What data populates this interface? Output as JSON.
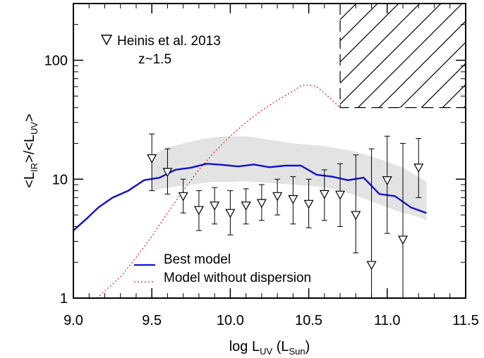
{
  "chart_data": {
    "type": "line",
    "xlabel": {
      "main": "log L",
      "sub1": "UV",
      "mid": " (L",
      "sub2": "Sun",
      "end": ")"
    },
    "ylabel": {
      "p1": "<L",
      "s1": "IR",
      "p2": ">/<L",
      "s2": "UV",
      "p3": ">"
    },
    "xlim": [
      9.0,
      11.5
    ],
    "ylim": [
      1,
      300
    ],
    "yscale": "log",
    "xticks": [
      "9.0",
      "9.5",
      "10.0",
      "10.5",
      "11.0",
      "11.5"
    ],
    "yticks": [
      {
        "value": 1,
        "label": "1"
      },
      {
        "value": 10,
        "label": "10"
      },
      {
        "value": 100,
        "label": "100"
      }
    ],
    "legend_top": {
      "symbol": "triangle-down",
      "line1": "Heinis et al. 2013",
      "line2": "z~1.5"
    },
    "legend_bottom": [
      {
        "label": "Best model",
        "color": "#1010d0",
        "style": "solid"
      },
      {
        "label": "Model without dispersion",
        "color": "#e02020",
        "style": "dotted"
      }
    ],
    "band": {
      "x": [
        9.5,
        9.6,
        9.7,
        9.8,
        9.9,
        10.0,
        10.1,
        10.2,
        10.3,
        10.4,
        10.5,
        10.6,
        10.7,
        10.8,
        10.9,
        11.0,
        11.1,
        11.2,
        11.25
      ],
      "upper": [
        16,
        18.5,
        20,
        21.5,
        22.5,
        23,
        23,
        22,
        21,
        20,
        19.5,
        19,
        18,
        17,
        15.5,
        14,
        12.5,
        10.5,
        9.5
      ],
      "lower": [
        8,
        8.5,
        8.8,
        9.2,
        9.5,
        9.5,
        9.6,
        9.4,
        9.2,
        9.0,
        8.8,
        8.5,
        8.0,
        7.3,
        6.5,
        5.8,
        5.2,
        4.8,
        4.5
      ],
      "color": "#e3e3e3"
    },
    "best_model": {
      "x": [
        9.0,
        9.08,
        9.16,
        9.25,
        9.35,
        9.45,
        9.55,
        9.65,
        9.75,
        9.85,
        9.95,
        10.05,
        10.15,
        10.25,
        10.35,
        10.45,
        10.55,
        10.65,
        10.75,
        10.85,
        10.95,
        11.05,
        11.15,
        11.25
      ],
      "y": [
        3.7,
        4.6,
        5.8,
        7.0,
        8.0,
        9.8,
        10.3,
        12.0,
        12.5,
        13.5,
        13.2,
        12.8,
        13.3,
        12.6,
        13.0,
        13.0,
        10.9,
        10.5,
        9.8,
        10.3,
        7.5,
        7.2,
        5.8,
        5.2
      ],
      "color": "#1010d0"
    },
    "no_dispersion_model": {
      "x": [
        9.15,
        9.2,
        9.3,
        9.4,
        9.5,
        9.6,
        9.7,
        9.8,
        9.9,
        10.0,
        10.1,
        10.2,
        10.3,
        10.4,
        10.45,
        10.5,
        10.55,
        10.6,
        10.65,
        10.7
      ],
      "y": [
        1.0,
        1.15,
        1.5,
        2.2,
        3.3,
        5.2,
        8.0,
        12.0,
        17.0,
        23.0,
        30.0,
        38.0,
        46.0,
        55.0,
        61.0,
        62.0,
        60.0,
        53.0,
        46.0,
        40.0
      ],
      "color": "#e02020"
    },
    "data_points": {
      "x": [
        9.5,
        9.6,
        9.7,
        9.8,
        9.9,
        10.0,
        10.1,
        10.2,
        10.3,
        10.4,
        10.5,
        10.6,
        10.7,
        10.8,
        10.9,
        11.0,
        11.1,
        11.2
      ],
      "y": [
        15.0,
        11.5,
        7.2,
        5.5,
        6.0,
        5.2,
        6.0,
        6.3,
        7.2,
        6.8,
        6.2,
        7.5,
        7.4,
        5.0,
        1.9,
        9.8,
        3.1,
        12.5
      ],
      "y_upper": [
        24.0,
        18.0,
        10.0,
        8.0,
        8.5,
        8.0,
        8.3,
        9.0,
        10.0,
        10.5,
        10.0,
        12.0,
        13.5,
        16.0,
        18.0,
        23.0,
        20.0,
        22.0
      ],
      "y_lower": [
        8.0,
        7.5,
        5.2,
        3.7,
        4.2,
        3.4,
        4.2,
        4.5,
        5.0,
        4.2,
        3.9,
        4.5,
        4.0,
        2.4,
        1.0,
        3.5,
        1.0,
        7.0
      ]
    },
    "excluded_region": {
      "x": [
        10.7,
        11.5
      ],
      "y": [
        40,
        300
      ],
      "hatch": "diagonal",
      "border": "dashed"
    }
  }
}
